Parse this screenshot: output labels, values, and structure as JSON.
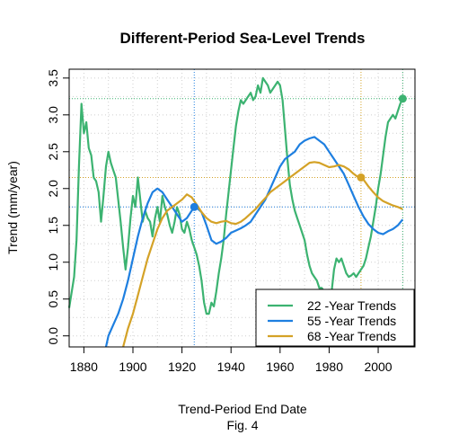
{
  "chart_data": {
    "type": "line",
    "title": "Different-Period Sea-Level Trends",
    "xlabel": "Trend-Period End Date",
    "caption": "Fig. 4",
    "ylabel": "Trend (mm/year)",
    "xlim": [
      1874,
      2015
    ],
    "ylim": [
      -0.15,
      3.62
    ],
    "x_ticks": [
      1880,
      1900,
      1920,
      1940,
      1960,
      1980,
      2000
    ],
    "y_ticks": [
      0.0,
      0.5,
      1.0,
      1.5,
      2.0,
      2.5,
      3.0,
      3.5
    ],
    "x_tick_labels": [
      "1880",
      "1900",
      "1920",
      "1940",
      "1960",
      "1980",
      "2000"
    ],
    "y_tick_labels": [
      "0.0",
      "0.5",
      "1.0",
      "1.5",
      "2.0",
      "2.5",
      "3.0",
      "3.5"
    ],
    "grid": true,
    "legend_position": "bottom-right",
    "series": [
      {
        "name": "22 -Year Trends",
        "color": "#3cb371",
        "x": [
          1874,
          1876,
          1877,
          1878,
          1879,
          1880,
          1881,
          1882,
          1883,
          1884,
          1885,
          1886,
          1887,
          1888,
          1889,
          1890,
          1891,
          1892,
          1893,
          1894,
          1895,
          1896,
          1897,
          1898,
          1899,
          1900,
          1901,
          1902,
          1903,
          1904,
          1905,
          1906,
          1907,
          1908,
          1909,
          1910,
          1911,
          1912,
          1913,
          1914,
          1915,
          1916,
          1917,
          1918,
          1919,
          1920,
          1921,
          1922,
          1923,
          1924,
          1925,
          1926,
          1927,
          1928,
          1929,
          1930,
          1931,
          1932,
          1933,
          1934,
          1935,
          1936,
          1937,
          1938,
          1939,
          1940,
          1941,
          1942,
          1943,
          1944,
          1945,
          1946,
          1947,
          1948,
          1949,
          1950,
          1951,
          1952,
          1953,
          1954,
          1955,
          1956,
          1957,
          1958,
          1959,
          1960,
          1961,
          1962,
          1963,
          1964,
          1965,
          1966,
          1967,
          1968,
          1969,
          1970,
          1971,
          1972,
          1973,
          1974,
          1975,
          1976,
          1977,
          1978,
          1979,
          1980,
          1981,
          1982,
          1983,
          1984,
          1985,
          1986,
          1987,
          1988,
          1989,
          1990,
          1991,
          1992,
          1993,
          1994,
          1995,
          1996,
          1997,
          1998,
          1999,
          2000,
          2001,
          2002,
          2003,
          2004,
          2005,
          2006,
          2007,
          2008,
          2009,
          2010
        ],
        "values": [
          0.38,
          0.8,
          1.3,
          2.3,
          3.15,
          2.75,
          2.9,
          2.55,
          2.45,
          2.15,
          2.1,
          1.95,
          1.55,
          1.9,
          2.3,
          2.5,
          2.35,
          2.25,
          2.15,
          1.85,
          1.55,
          1.2,
          0.9,
          1.2,
          1.6,
          1.9,
          1.75,
          2.15,
          1.85,
          1.55,
          1.7,
          1.6,
          1.55,
          1.35,
          1.6,
          1.75,
          1.55,
          1.9,
          1.75,
          1.65,
          1.5,
          1.4,
          1.55,
          1.75,
          1.65,
          1.45,
          1.4,
          1.55,
          1.45,
          1.3,
          1.2,
          1.1,
          0.95,
          0.75,
          0.45,
          0.3,
          0.3,
          0.45,
          0.4,
          0.6,
          0.85,
          1.05,
          1.3,
          1.65,
          1.95,
          2.25,
          2.55,
          2.85,
          3.05,
          3.2,
          3.15,
          3.2,
          3.25,
          3.3,
          3.2,
          3.25,
          3.4,
          3.3,
          3.5,
          3.45,
          3.4,
          3.3,
          3.35,
          3.4,
          3.45,
          3.4,
          3.2,
          2.8,
          2.4,
          2.05,
          1.85,
          1.7,
          1.6,
          1.5,
          1.4,
          1.3,
          1.1,
          0.95,
          0.85,
          0.8,
          0.75,
          0.65,
          0.65,
          0.6,
          0.55,
          0.45,
          0.6,
          0.9,
          1.05,
          1.0,
          1.05,
          0.95,
          0.85,
          0.8,
          0.82,
          0.85,
          0.8,
          0.85,
          0.9,
          0.95,
          1.05,
          1.2,
          1.35,
          1.55,
          1.75,
          2.0,
          2.2,
          2.45,
          2.7,
          2.9,
          2.95,
          3.0,
          2.95,
          3.05,
          3.15,
          3.22
        ]
      },
      {
        "name": "55 -Year Trends",
        "color": "#1e7fe0",
        "x": [
          1889,
          1890,
          1892,
          1894,
          1896,
          1898,
          1900,
          1902,
          1904,
          1906,
          1908,
          1910,
          1912,
          1914,
          1916,
          1918,
          1920,
          1922,
          1924,
          1925,
          1926,
          1928,
          1930,
          1932,
          1934,
          1936,
          1938,
          1940,
          1942,
          1944,
          1946,
          1948,
          1950,
          1952,
          1954,
          1956,
          1958,
          1960,
          1962,
          1964,
          1966,
          1968,
          1970,
          1972,
          1974,
          1976,
          1978,
          1980,
          1982,
          1984,
          1986,
          1988,
          1990,
          1992,
          1994,
          1996,
          1998,
          2000,
          2002,
          2004,
          2006,
          2008,
          2010
        ],
        "values": [
          -0.15,
          0.0,
          0.15,
          0.3,
          0.5,
          0.75,
          1.05,
          1.35,
          1.6,
          1.8,
          1.95,
          2.0,
          1.95,
          1.85,
          1.75,
          1.65,
          1.55,
          1.6,
          1.7,
          1.75,
          1.74,
          1.68,
          1.5,
          1.3,
          1.25,
          1.28,
          1.33,
          1.4,
          1.43,
          1.46,
          1.5,
          1.55,
          1.65,
          1.75,
          1.85,
          2.0,
          2.15,
          2.3,
          2.4,
          2.45,
          2.5,
          2.6,
          2.65,
          2.68,
          2.7,
          2.65,
          2.6,
          2.5,
          2.4,
          2.3,
          2.2,
          2.05,
          1.9,
          1.75,
          1.62,
          1.52,
          1.45,
          1.4,
          1.38,
          1.42,
          1.45,
          1.5,
          1.58
        ]
      },
      {
        "name": "68 -Year Trends",
        "color": "#d4a227",
        "x": [
          1896,
          1898,
          1900,
          1902,
          1904,
          1906,
          1908,
          1910,
          1912,
          1914,
          1916,
          1918,
          1920,
          1922,
          1924,
          1926,
          1928,
          1930,
          1932,
          1934,
          1936,
          1938,
          1940,
          1942,
          1944,
          1946,
          1948,
          1950,
          1952,
          1954,
          1956,
          1958,
          1960,
          1962,
          1964,
          1966,
          1968,
          1970,
          1972,
          1974,
          1976,
          1978,
          1980,
          1982,
          1984,
          1986,
          1988,
          1990,
          1992,
          1993,
          1994,
          1996,
          1998,
          2000,
          2002,
          2004,
          2006,
          2008,
          2010
        ],
        "values": [
          -0.15,
          0.1,
          0.3,
          0.55,
          0.8,
          1.05,
          1.25,
          1.45,
          1.6,
          1.7,
          1.75,
          1.8,
          1.85,
          1.92,
          1.88,
          1.78,
          1.68,
          1.6,
          1.55,
          1.53,
          1.55,
          1.56,
          1.53,
          1.52,
          1.55,
          1.6,
          1.66,
          1.72,
          1.8,
          1.87,
          1.95,
          2.0,
          2.05,
          2.1,
          2.15,
          2.2,
          2.25,
          2.3,
          2.35,
          2.36,
          2.35,
          2.32,
          2.29,
          2.3,
          2.32,
          2.3,
          2.26,
          2.2,
          2.15,
          2.15,
          2.12,
          2.03,
          1.95,
          1.88,
          1.83,
          1.8,
          1.77,
          1.75,
          1.72
        ]
      }
    ],
    "markers": [
      {
        "x": 1925,
        "y": 1.75,
        "color": "#1e7fe0"
      },
      {
        "x": 1993,
        "y": 2.15,
        "color": "#d4a227"
      },
      {
        "x": 2010,
        "y": 3.22,
        "color": "#3cb371"
      }
    ],
    "ref_lines": [
      {
        "orient": "v",
        "value": 1925,
        "color": "#1e7fe0"
      },
      {
        "orient": "h",
        "value": 1.75,
        "color": "#1e7fe0"
      },
      {
        "orient": "v",
        "value": 1993,
        "color": "#d4a227"
      },
      {
        "orient": "h",
        "value": 2.15,
        "color": "#d4a227"
      },
      {
        "orient": "v",
        "value": 2010,
        "color": "#3cb371"
      },
      {
        "orient": "h",
        "value": 3.22,
        "color": "#3cb371"
      }
    ]
  }
}
